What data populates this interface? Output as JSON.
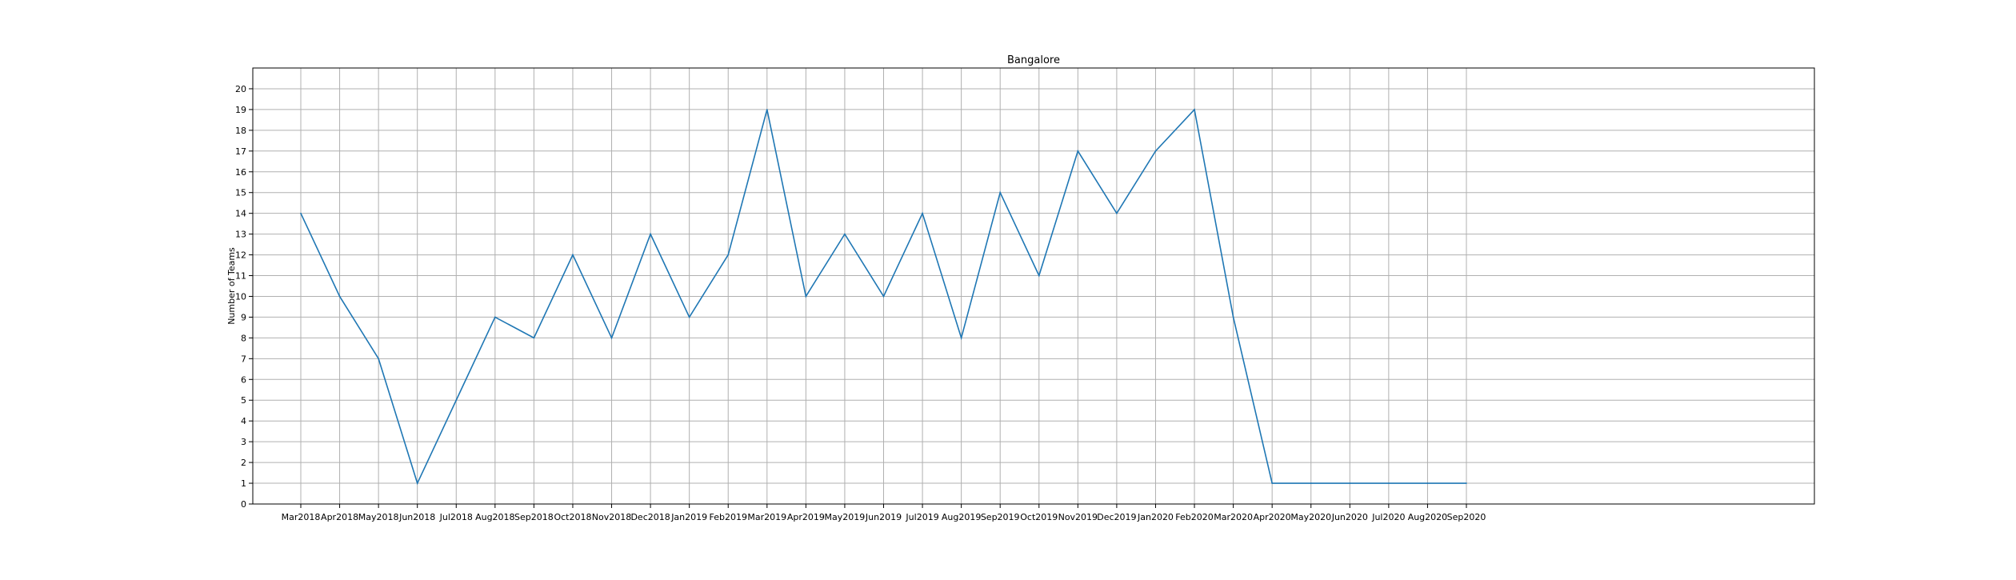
{
  "chart_data": {
    "type": "line",
    "title": "Bangalore",
    "xlabel": "",
    "ylabel": "Number of Teams",
    "categories": [
      "Mar2018",
      "Apr2018",
      "May2018",
      "Jun2018",
      "Jul2018",
      "Aug2018",
      "Sep2018",
      "Oct2018",
      "Nov2018",
      "Dec2018",
      "Jan2019",
      "Feb2019",
      "Mar2019",
      "Apr2019",
      "May2019",
      "Jun2019",
      "Jul2019",
      "Aug2019",
      "Sep2019",
      "Oct2019",
      "Nov2019",
      "Dec2019",
      "Jan2020",
      "Feb2020",
      "Mar2020",
      "Apr2020",
      "May2020",
      "Jun2020",
      "Jul2020",
      "Aug2020",
      "Sep2020"
    ],
    "series": [
      {
        "values": [
          14,
          10,
          7,
          1,
          5,
          9,
          8,
          12,
          8,
          13,
          9,
          12,
          19,
          10,
          13,
          10,
          14,
          8,
          15,
          11,
          17,
          14,
          17,
          19,
          9,
          1,
          1,
          1,
          1,
          1,
          1
        ]
      }
    ],
    "ylim": [
      0,
      21
    ],
    "yticks": [
      0,
      1,
      2,
      3,
      4,
      5,
      6,
      7,
      8,
      9,
      10,
      11,
      12,
      13,
      14,
      15,
      16,
      17,
      18,
      19,
      20
    ],
    "grid": true,
    "legend": "none",
    "line_color": "#1f77b4"
  }
}
